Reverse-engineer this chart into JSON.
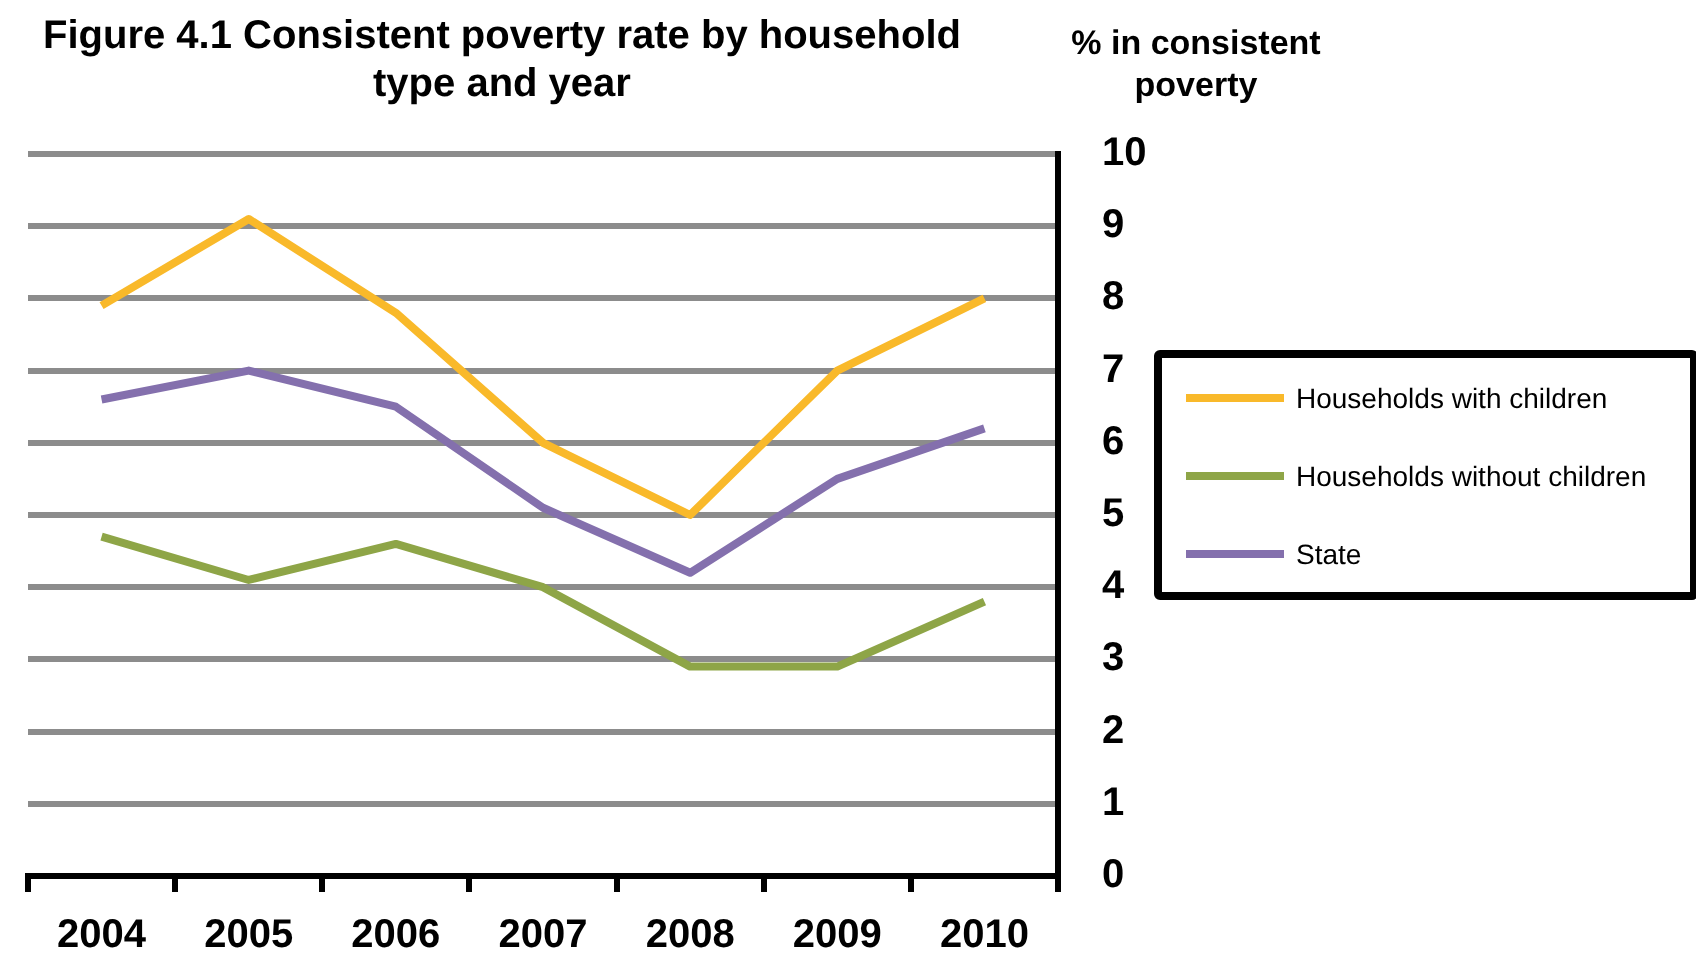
{
  "chart_data": {
    "type": "line",
    "title": "Figure 4.1 Consistent poverty rate by household type and year",
    "ylabel": "% in consistent poverty",
    "categories": [
      "2004",
      "2005",
      "2006",
      "2007",
      "2008",
      "2009",
      "2010"
    ],
    "series": [
      {
        "name": "Households with children",
        "color": "#f9b92a",
        "values": [
          7.9,
          9.1,
          7.8,
          6.0,
          5.0,
          7.0,
          8.0
        ]
      },
      {
        "name": "Households without children",
        "color": "#8ea547",
        "values": [
          4.7,
          4.1,
          4.6,
          4.0,
          2.9,
          2.9,
          3.8
        ]
      },
      {
        "name": "State",
        "color": "#8470ad",
        "values": [
          6.6,
          7.0,
          6.5,
          5.1,
          4.2,
          5.5,
          6.2
        ]
      }
    ],
    "ylim": [
      0,
      10
    ],
    "yticks": [
      0,
      1,
      2,
      3,
      4,
      5,
      6,
      7,
      8,
      9,
      10
    ],
    "grid": "y",
    "legend": "right",
    "marker": "none",
    "line_style": "solid"
  }
}
